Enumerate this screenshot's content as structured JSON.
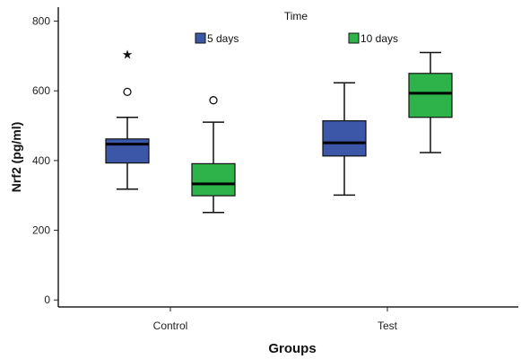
{
  "chart_data": {
    "type": "box",
    "xlabel": "Groups",
    "ylabel": "Nrf2 (pg/ml)",
    "legend_title": "Time",
    "legend_position": "top",
    "grid": false,
    "ylim": [
      -20,
      840
    ],
    "yticks": [
      0,
      200,
      400,
      600,
      800
    ],
    "categories": [
      "Control",
      "Test"
    ],
    "series": [
      {
        "name": "5 days",
        "color": "#3c56a8",
        "boxes": [
          {
            "category": "Control",
            "whisker_low": 318,
            "q1": 393,
            "median": 447,
            "q3": 462,
            "whisker_high": 524,
            "outliers": [
              {
                "value": 597,
                "marker": "circle"
              },
              {
                "value": 705,
                "marker": "star"
              }
            ]
          },
          {
            "category": "Test",
            "whisker_low": 301,
            "q1": 413,
            "median": 451,
            "q3": 514,
            "whisker_high": 623,
            "outliers": []
          }
        ]
      },
      {
        "name": "10 days",
        "color": "#2db34a",
        "boxes": [
          {
            "category": "Control",
            "whisker_low": 251,
            "q1": 299,
            "median": 333,
            "q3": 391,
            "whisker_high": 510,
            "outliers": [
              {
                "value": 573,
                "marker": "circle"
              }
            ]
          },
          {
            "category": "Test",
            "whisker_low": 423,
            "q1": 524,
            "median": 593,
            "q3": 650,
            "whisker_high": 710,
            "outliers": []
          }
        ]
      }
    ]
  }
}
